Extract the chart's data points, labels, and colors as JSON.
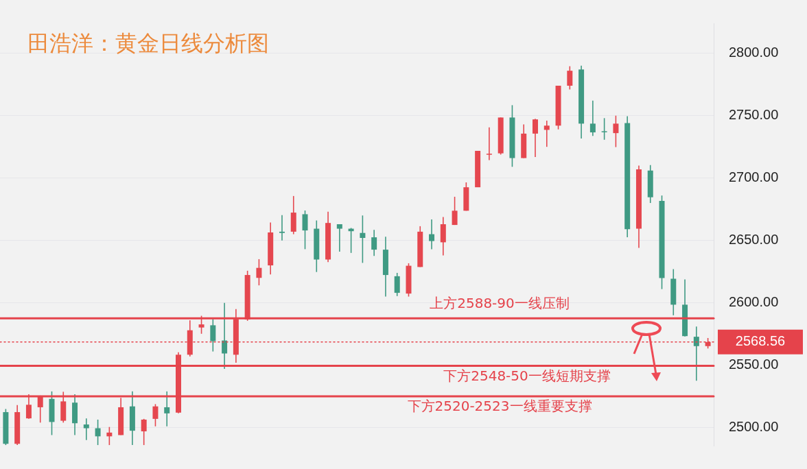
{
  "chart_data": {
    "type": "candlestick",
    "title": "田浩洋：黄金日线分析图",
    "categories": [
      null,
      null,
      null,
      null,
      null,
      null,
      null,
      null,
      null,
      null,
      null,
      null,
      null,
      null,
      null,
      null,
      null,
      null,
      null,
      null,
      null,
      null,
      null,
      null,
      null,
      null,
      null,
      null,
      null,
      null,
      null,
      null,
      null,
      null,
      null,
      null,
      null,
      null,
      null,
      null,
      null,
      null,
      null,
      null,
      null,
      null,
      null,
      null,
      null,
      null,
      null,
      null,
      null,
      null,
      null,
      null,
      null,
      null,
      null,
      null,
      null,
      null
    ],
    "ohlc": [
      [
        2512.4,
        2514.9,
        2486,
        2487
      ],
      [
        2487,
        2518,
        2486,
        2512.4
      ],
      [
        2507.4,
        2526.7,
        2507,
        2518.3
      ],
      [
        2516.3,
        2525.7,
        2504,
        2524.8
      ],
      [
        2523,
        2529,
        2494,
        2504.5
      ],
      [
        2505.5,
        2528.7,
        2504,
        2521
      ],
      [
        2520,
        2526.7,
        2494,
        2503.5
      ],
      [
        2502.5,
        2507.4,
        2490,
        2499.5
      ],
      [
        2499.5,
        2506.4,
        2486,
        2493
      ],
      [
        2493,
        2500.5,
        2486,
        2496
      ],
      [
        2494,
        2523.8,
        2494,
        2516.3
      ],
      [
        2517,
        2529,
        2486,
        2497.5
      ],
      [
        2497,
        2507,
        2486,
        2506.4
      ],
      [
        2507,
        2518.8,
        2501,
        2517
      ],
      [
        2516.3,
        2529,
        2501,
        2511.4
      ],
      [
        2512,
        2560.4,
        2511.4,
        2558.4
      ],
      [
        2558.4,
        2586,
        2557,
        2578
      ],
      [
        2580.2,
        2589.6,
        2575.2,
        2582.7
      ],
      [
        2582,
        2587,
        2561,
        2569.3
      ],
      [
        2569.8,
        2600,
        2547,
        2559.4
      ],
      [
        2558.4,
        2595,
        2552,
        2587
      ],
      [
        2586.6,
        2625.7,
        2585.6,
        2622.3
      ],
      [
        2620,
        2635,
        2614,
        2628
      ],
      [
        2630,
        2664.4,
        2622.8,
        2656.4
      ],
      [
        2657,
        2670.3,
        2650,
        2656
      ],
      [
        2657,
        2685.6,
        2655,
        2672.3
      ],
      [
        2671,
        2674,
        2643,
        2658
      ],
      [
        2659.4,
        2666,
        2624.7,
        2634.7
      ],
      [
        2634.7,
        2673,
        2632.7,
        2664
      ],
      [
        2663,
        2663,
        2641,
        2659.4
      ],
      [
        2659.4,
        2660,
        2640,
        2657.4
      ],
      [
        2656,
        2670,
        2632,
        2652
      ],
      [
        2652.5,
        2658.4,
        2637.6,
        2642.6
      ],
      [
        2642.6,
        2653,
        2605,
        2622.3
      ],
      [
        2621.3,
        2624,
        2605.4,
        2608
      ],
      [
        2607.4,
        2631.7,
        2605,
        2629.7
      ],
      [
        2628.7,
        2661.4,
        2628.7,
        2657
      ],
      [
        2655,
        2666.8,
        2643,
        2649.5
      ],
      [
        2648.5,
        2668.8,
        2638,
        2663
      ],
      [
        2662.4,
        2685,
        2662.4,
        2673.8
      ],
      [
        2673.8,
        2696.5,
        2673.8,
        2692.6
      ],
      [
        2692.6,
        2721.8,
        2692.6,
        2721.8
      ],
      [
        2719,
        2740.6,
        2714.4,
        2719.5
      ],
      [
        2719.8,
        2748.5,
        2718.8,
        2748.5
      ],
      [
        2748.5,
        2758.4,
        2709,
        2716
      ],
      [
        2716,
        2743,
        2716,
        2735.6
      ],
      [
        2735.6,
        2747.5,
        2716.8,
        2747
      ],
      [
        2738.6,
        2746,
        2725,
        2742
      ],
      [
        2742,
        2774,
        2739,
        2774
      ],
      [
        2774,
        2789.6,
        2771,
        2786
      ],
      [
        2787,
        2790,
        2731.7,
        2743.6
      ],
      [
        2743.6,
        2762,
        2733.7,
        2736.6
      ],
      [
        2737.5,
        2748,
        2730.7,
        2737
      ],
      [
        2736,
        2750,
        2724.8,
        2743.6
      ],
      [
        2744,
        2749.5,
        2652.5,
        2659
      ],
      [
        2659.4,
        2710,
        2644,
        2707
      ],
      [
        2706,
        2710.4,
        2680,
        2684.6
      ],
      [
        2681.7,
        2686,
        2611,
        2619.8
      ],
      [
        2619.3,
        2627,
        2590,
        2598.5
      ],
      [
        2598.5,
        2618.8,
        2573,
        2573.3
      ],
      [
        2572.8,
        2581,
        2537.6,
        2565.3
      ],
      [
        2565.3,
        2571.8,
        2563.4,
        2568.56
      ]
    ],
    "colors": [
      "#3f9a83",
      "#e5474f",
      "#e5474f",
      "#e5474f",
      "#3f9a83",
      "#e5474f",
      "#3f9a83",
      "#3f9a83",
      "#3f9a83",
      "#e5474f",
      "#e5474f",
      "#3f9a83",
      "#e5474f",
      "#e5474f",
      "#3f9a83",
      "#e5474f",
      "#e5474f",
      "#e5474f",
      "#3f9a83",
      "#3f9a83",
      "#e5474f",
      "#e5474f",
      "#e5474f",
      "#e5474f",
      "#3f9a83",
      "#e5474f",
      "#3f9a83",
      "#3f9a83",
      "#e5474f",
      "#3f9a83",
      "#3f9a83",
      "#3f9a83",
      "#3f9a83",
      "#3f9a83",
      "#3f9a83",
      "#e5474f",
      "#e5474f",
      "#3f9a83",
      "#e5474f",
      "#e5474f",
      "#e5474f",
      "#e5474f",
      "#e5474f",
      "#e5474f",
      "#3f9a83",
      "#e5474f",
      "#e5474f",
      "#e5474f",
      "#e5474f",
      "#e5474f",
      "#3f9a83",
      "#3f9a83",
      "#3f9a83",
      "#e5474f",
      "#3f9a83",
      "#e5474f",
      "#3f9a83",
      "#3f9a83",
      "#3f9a83",
      "#3f9a83",
      "#3f9a83",
      "#e5474f"
    ],
    "ylim": [
      2485.5,
      2824
    ],
    "yticks": [
      {
        "value": 2500,
        "label": "2500.00"
      },
      {
        "value": 2550,
        "label": "2550.00"
      },
      {
        "value": 2600,
        "label": "2600.00"
      },
      {
        "value": 2650,
        "label": "2650.00"
      },
      {
        "value": 2700,
        "label": "2700.00"
      },
      {
        "value": 2750,
        "label": "2750.00"
      },
      {
        "value": 2800,
        "label": "2800.00"
      }
    ],
    "grid": "y",
    "tick_labels": "y",
    "ref_lines": [
      {
        "axis": "y",
        "value": 2587.6,
        "label": "上方2588-90一线压制",
        "color": "#e5434b",
        "line_style": "solid"
      },
      {
        "axis": "y",
        "value": 2549.5,
        "label": "下方2548-50一线短期支撑",
        "color": "#e5434b",
        "line_style": "solid"
      },
      {
        "axis": "y",
        "value": 2525,
        "label": "下方2520-2523一线重要支撑",
        "color": "#e5434b",
        "line_style": "solid"
      },
      {
        "axis": "y",
        "value": 2568.56,
        "label": "2568.56",
        "color": "#e5434b",
        "line_style": "dotted"
      }
    ]
  }
}
